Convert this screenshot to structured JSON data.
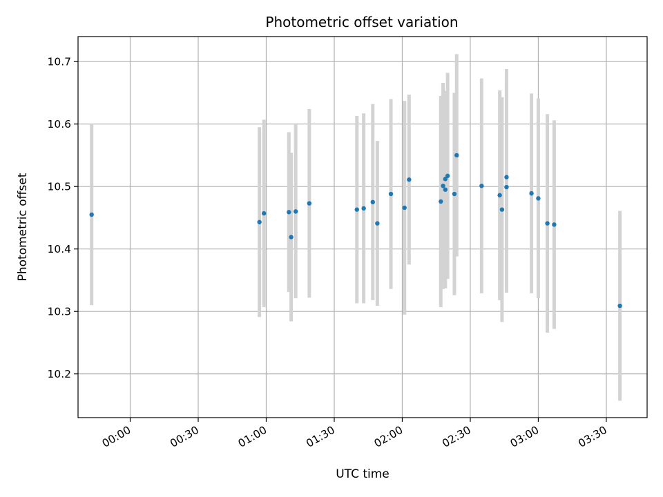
{
  "chart_data": {
    "type": "scatter",
    "title": "Photometric offset variation",
    "xlabel": "UTC time",
    "ylabel": "Photometric offset",
    "x_axis_type": "time",
    "xlim": [
      "23:37",
      "03:48"
    ],
    "ylim": [
      10.13,
      10.74
    ],
    "x_ticks": [
      "00:00",
      "00:30",
      "01:00",
      "01:30",
      "02:00",
      "02:30",
      "03:00",
      "03:30"
    ],
    "y_ticks": [
      10.2,
      10.3,
      10.4,
      10.5,
      10.6,
      10.7
    ],
    "grid": true,
    "marker_color": "#1f77b4",
    "errorbar_color": "#d3d3d3",
    "points": [
      {
        "time": "23:43",
        "value": 10.455,
        "error": 0.145
      },
      {
        "time": "00:57",
        "value": 10.443,
        "error": 0.152
      },
      {
        "time": "00:59",
        "value": 10.457,
        "error": 0.15
      },
      {
        "time": "01:10",
        "value": 10.459,
        "error": 0.128
      },
      {
        "time": "01:11",
        "value": 10.419,
        "error": 0.135
      },
      {
        "time": "01:13",
        "value": 10.46,
        "error": 0.139
      },
      {
        "time": "01:19",
        "value": 10.473,
        "error": 0.151
      },
      {
        "time": "01:40",
        "value": 10.463,
        "error": 0.15
      },
      {
        "time": "01:43",
        "value": 10.465,
        "error": 0.152
      },
      {
        "time": "01:47",
        "value": 10.475,
        "error": 0.157
      },
      {
        "time": "01:49",
        "value": 10.441,
        "error": 0.132
      },
      {
        "time": "01:55",
        "value": 10.488,
        "error": 0.152
      },
      {
        "time": "02:01",
        "value": 10.466,
        "error": 0.171
      },
      {
        "time": "02:03",
        "value": 10.511,
        "error": 0.136
      },
      {
        "time": "02:17",
        "value": 10.476,
        "error": 0.169
      },
      {
        "time": "02:18",
        "value": 10.501,
        "error": 0.165
      },
      {
        "time": "02:19",
        "value": 10.495,
        "error": 0.158
      },
      {
        "time": "02:19",
        "value": 10.512,
        "error": 0.14
      },
      {
        "time": "02:20",
        "value": 10.517,
        "error": 0.165
      },
      {
        "time": "02:23",
        "value": 10.488,
        "error": 0.162
      },
      {
        "time": "02:24",
        "value": 10.55,
        "error": 0.162
      },
      {
        "time": "02:35",
        "value": 10.501,
        "error": 0.172
      },
      {
        "time": "02:43",
        "value": 10.486,
        "error": 0.168
      },
      {
        "time": "02:44",
        "value": 10.463,
        "error": 0.18
      },
      {
        "time": "02:46",
        "value": 10.515,
        "error": 0.173
      },
      {
        "time": "02:46",
        "value": 10.499,
        "error": 0.169
      },
      {
        "time": "02:57",
        "value": 10.489,
        "error": 0.16
      },
      {
        "time": "03:00",
        "value": 10.481,
        "error": 0.16
      },
      {
        "time": "03:04",
        "value": 10.441,
        "error": 0.175
      },
      {
        "time": "03:07",
        "value": 10.439,
        "error": 0.167
      },
      {
        "time": "03:36",
        "value": 10.309,
        "error": 0.152
      }
    ]
  }
}
